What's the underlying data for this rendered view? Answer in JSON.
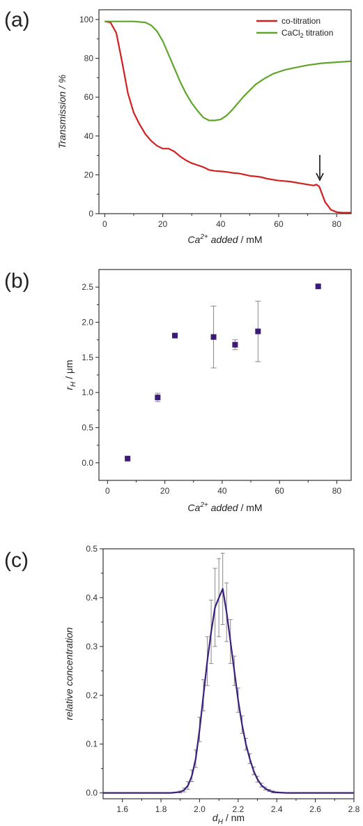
{
  "colors": {
    "co_titration": "#d21f1f",
    "cacl2_titration": "#5fa52a",
    "marker": "#3d1a78",
    "errorbar": "#888888",
    "fit_line": "#3b1f7a"
  },
  "chart_data": [
    {
      "panel": "(a)",
      "type": "line",
      "xlabel_italic": "Ca",
      "xlabel_sup": "2+",
      "xlabel_italic2": " added",
      "xlabel_unit": " / mM",
      "ylabel": "Transmission / %",
      "xlim": [
        -2,
        85
      ],
      "ylim": [
        0,
        105
      ],
      "xticks": [
        0,
        20,
        40,
        60,
        80
      ],
      "yticks": [
        0,
        20,
        40,
        60,
        80,
        100
      ],
      "legend_position": "top-right",
      "annotation": "arrow at x = 74 pointing down",
      "series": [
        {
          "name": "co-titration",
          "color": "#d21f1f",
          "x": [
            0,
            2,
            4,
            6,
            8,
            10,
            12,
            14,
            16,
            18,
            20,
            22,
            24,
            26,
            28,
            30,
            32,
            34,
            36,
            38,
            40,
            42,
            44,
            46,
            48,
            50,
            52,
            54,
            56,
            58,
            60,
            62,
            64,
            66,
            68,
            70,
            72,
            73,
            74,
            75,
            76,
            78,
            80,
            82,
            85
          ],
          "y": [
            99,
            98.5,
            93,
            78,
            62,
            52,
            46,
            41,
            37.5,
            35,
            33.5,
            33.5,
            32,
            29.5,
            27.5,
            26,
            25,
            24,
            22.5,
            22,
            21.8,
            21.5,
            21,
            20.8,
            20.2,
            19.5,
            19.2,
            18.8,
            18,
            17.5,
            17,
            16.8,
            16.5,
            16,
            15.5,
            15,
            14.5,
            15,
            14,
            10,
            6,
            2,
            0.8,
            0.5,
            0.5
          ]
        },
        {
          "name": "CaCl2 titration",
          "color": "#5fa52a",
          "x": [
            0,
            5,
            10,
            14,
            16,
            18,
            20,
            22,
            24,
            26,
            28,
            30,
            32,
            34,
            36,
            38,
            40,
            42,
            44,
            46,
            48,
            50,
            52,
            55,
            58,
            60,
            62,
            65,
            70,
            75,
            80,
            85
          ],
          "y": [
            99,
            99,
            99,
            98.5,
            97,
            94,
            89,
            82,
            75,
            68,
            62,
            57,
            53,
            49.5,
            48,
            48,
            48.5,
            50.5,
            53.5,
            57,
            60.5,
            63.5,
            66.5,
            69.5,
            72,
            73,
            74,
            75,
            76.5,
            77.5,
            78,
            78.5
          ]
        }
      ]
    },
    {
      "panel": "(b)",
      "type": "scatter",
      "xlabel_italic": "Ca",
      "xlabel_sup": "2+",
      "xlabel_italic2": " added",
      "xlabel_unit": " / mM",
      "ylabel_italic": "r",
      "ylabel_sub": "H",
      "ylabel_unit": " / μm",
      "xlim": [
        -3,
        85
      ],
      "ylim": [
        -0.25,
        2.75
      ],
      "xticks": [
        0,
        20,
        40,
        60,
        80
      ],
      "yticks": [
        0.0,
        0.5,
        1.0,
        1.5,
        2.0,
        2.5
      ],
      "points": [
        {
          "x": 7,
          "y": 0.06,
          "err": 0.0
        },
        {
          "x": 17.5,
          "y": 0.93,
          "err": 0.06
        },
        {
          "x": 23.5,
          "y": 1.81,
          "err": 0.0
        },
        {
          "x": 37,
          "y": 1.79,
          "err": 0.44
        },
        {
          "x": 44.5,
          "y": 1.68,
          "err": 0.07
        },
        {
          "x": 52.5,
          "y": 1.87,
          "err": 0.43
        },
        {
          "x": 73.5,
          "y": 2.51,
          "err": 0.0
        }
      ]
    },
    {
      "panel": "(c)",
      "type": "line",
      "xlabel_italic": "d",
      "xlabel_sub": "H",
      "xlabel_unit": " / nm",
      "ylabel": "relative concentration",
      "xlim": [
        1.5,
        2.8
      ],
      "ylim": [
        -0.012,
        0.5
      ],
      "xticks": [
        1.6,
        1.8,
        2.0,
        2.2,
        2.4,
        2.6,
        2.8
      ],
      "yticks": [
        0.0,
        0.1,
        0.2,
        0.3,
        0.4,
        0.5
      ],
      "series": [
        {
          "x": [
            1.5,
            1.85,
            1.9,
            1.92,
            1.94,
            1.96,
            1.98,
            2.0,
            2.02,
            2.04,
            2.06,
            2.08,
            2.1,
            2.12,
            2.14,
            2.16,
            2.18,
            2.2,
            2.22,
            2.24,
            2.26,
            2.28,
            2.3,
            2.32,
            2.34,
            2.36,
            2.38,
            2.4,
            2.45,
            2.8
          ],
          "y": [
            0.0,
            0.0,
            0.002,
            0.006,
            0.015,
            0.035,
            0.07,
            0.13,
            0.2,
            0.27,
            0.33,
            0.38,
            0.4,
            0.418,
            0.37,
            0.31,
            0.25,
            0.19,
            0.14,
            0.1,
            0.07,
            0.045,
            0.028,
            0.016,
            0.009,
            0.005,
            0.002,
            0.001,
            0.0,
            0.0
          ],
          "err": [
            0,
            0,
            0.002,
            0.004,
            0.008,
            0.012,
            0.018,
            0.025,
            0.032,
            0.05,
            0.065,
            0.08,
            0.08,
            0.073,
            0.06,
            0.045,
            0.03,
            0.025,
            0.018,
            0.012,
            0.01,
            0.008,
            0.006,
            0.004,
            0.003,
            0.002,
            0.002,
            0.001,
            0,
            0
          ]
        }
      ]
    }
  ]
}
